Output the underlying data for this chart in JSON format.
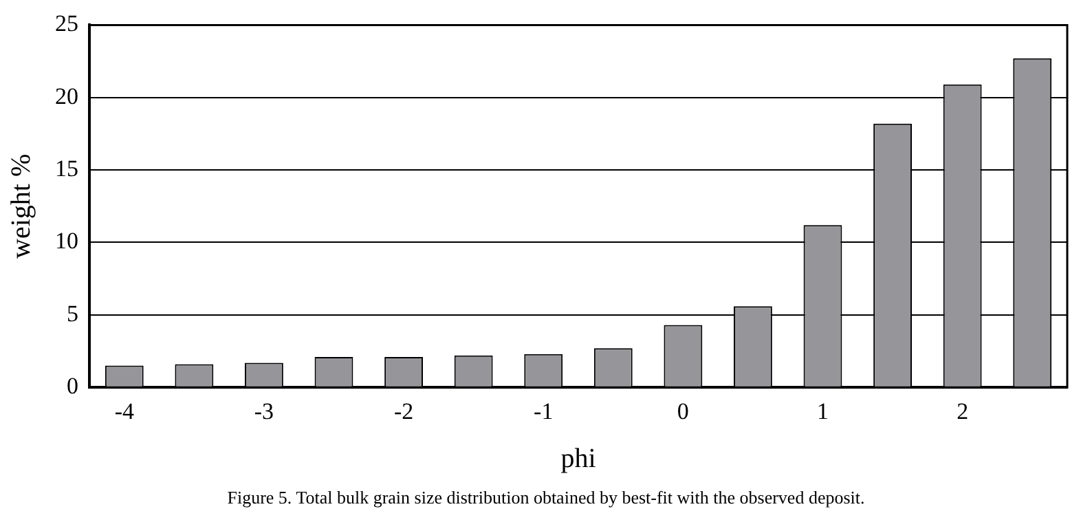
{
  "chart_data": {
    "type": "bar",
    "xlabel": "phi",
    "ylabel": "weight %",
    "categories": [
      "-4",
      null,
      "-3",
      null,
      "-2",
      null,
      "-1",
      null,
      "0",
      null,
      "1",
      null,
      "2",
      null
    ],
    "values": [
      1.5,
      1.6,
      1.7,
      2.1,
      2.1,
      2.2,
      2.3,
      2.7,
      4.3,
      5.6,
      11.2,
      18.2,
      20.9,
      22.7
    ],
    "color": "#96969a",
    "ylim": [
      0,
      25
    ],
    "yticks": [
      0,
      5,
      10,
      15,
      20,
      25
    ],
    "grid": "y",
    "legend": false,
    "annotations": [
      "Figure 5. Total bulk grain size distribution obtained by best-fit with the observed deposit."
    ]
  }
}
